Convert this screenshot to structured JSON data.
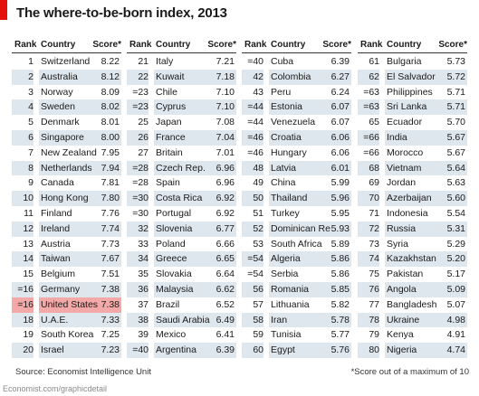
{
  "title": "The where-to-be-born index, 2013",
  "headers": {
    "rank": "Rank",
    "country": "Country",
    "score": "Score*"
  },
  "source": "Source: Economist Intelligence Unit",
  "footnote": "*Score out of a maximum of 10",
  "credit": "Economist.com/graphicdetail",
  "colors": {
    "accent": "#e3120b",
    "row_shade": "#dfe7ee",
    "highlight": "#f4a9a9"
  },
  "chart_data": {
    "type": "table",
    "title": "The where-to-be-born index, 2013",
    "highlighted_country": "United States",
    "columns": [
      {
        "rows": [
          {
            "rank": "1",
            "country": "Switzerland",
            "score": "8.22"
          },
          {
            "rank": "2",
            "country": "Australia",
            "score": "8.12"
          },
          {
            "rank": "3",
            "country": "Norway",
            "score": "8.09"
          },
          {
            "rank": "4",
            "country": "Sweden",
            "score": "8.02"
          },
          {
            "rank": "5",
            "country": "Denmark",
            "score": "8.01"
          },
          {
            "rank": "6",
            "country": "Singapore",
            "score": "8.00"
          },
          {
            "rank": "7",
            "country": "New Zealand",
            "score": "7.95"
          },
          {
            "rank": "8",
            "country": "Netherlands",
            "score": "7.94"
          },
          {
            "rank": "9",
            "country": "Canada",
            "score": "7.81"
          },
          {
            "rank": "10",
            "country": "Hong Kong",
            "score": "7.80"
          },
          {
            "rank": "11",
            "country": "Finland",
            "score": "7.76"
          },
          {
            "rank": "12",
            "country": "Ireland",
            "score": "7.74"
          },
          {
            "rank": "13",
            "country": "Austria",
            "score": "7.73"
          },
          {
            "rank": "14",
            "country": "Taiwan",
            "score": "7.67"
          },
          {
            "rank": "15",
            "country": "Belgium",
            "score": "7.51"
          },
          {
            "rank": "=16",
            "country": "Germany",
            "score": "7.38"
          },
          {
            "rank": "=16",
            "country": "United States",
            "score": "7.38"
          },
          {
            "rank": "18",
            "country": "U.A.E.",
            "score": "7.33"
          },
          {
            "rank": "19",
            "country": "South Korea",
            "score": "7.25"
          },
          {
            "rank": "20",
            "country": "Israel",
            "score": "7.23"
          }
        ]
      },
      {
        "rows": [
          {
            "rank": "21",
            "country": "Italy",
            "score": "7.21"
          },
          {
            "rank": "22",
            "country": "Kuwait",
            "score": "7.18"
          },
          {
            "rank": "=23",
            "country": "Chile",
            "score": "7.10"
          },
          {
            "rank": "=23",
            "country": "Cyprus",
            "score": "7.10"
          },
          {
            "rank": "25",
            "country": "Japan",
            "score": "7.08"
          },
          {
            "rank": "26",
            "country": "France",
            "score": "7.04"
          },
          {
            "rank": "27",
            "country": "Britain",
            "score": "7.01"
          },
          {
            "rank": "=28",
            "country": "Czech Rep.",
            "score": "6.96"
          },
          {
            "rank": "=28",
            "country": "Spain",
            "score": "6.96"
          },
          {
            "rank": "=30",
            "country": "Costa Rica",
            "score": "6.92"
          },
          {
            "rank": "=30",
            "country": "Portugal",
            "score": "6.92"
          },
          {
            "rank": "32",
            "country": "Slovenia",
            "score": "6.77"
          },
          {
            "rank": "33",
            "country": "Poland",
            "score": "6.66"
          },
          {
            "rank": "34",
            "country": "Greece",
            "score": "6.65"
          },
          {
            "rank": "35",
            "country": "Slovakia",
            "score": "6.64"
          },
          {
            "rank": "36",
            "country": "Malaysia",
            "score": "6.62"
          },
          {
            "rank": "37",
            "country": "Brazil",
            "score": "6.52"
          },
          {
            "rank": "38",
            "country": "Saudi Arabia",
            "score": "6.49"
          },
          {
            "rank": "39",
            "country": "Mexico",
            "score": "6.41"
          },
          {
            "rank": "=40",
            "country": "Argentina",
            "score": "6.39"
          }
        ]
      },
      {
        "rows": [
          {
            "rank": "=40",
            "country": "Cuba",
            "score": "6.39"
          },
          {
            "rank": "42",
            "country": "Colombia",
            "score": "6.27"
          },
          {
            "rank": "43",
            "country": "Peru",
            "score": "6.24"
          },
          {
            "rank": "=44",
            "country": "Estonia",
            "score": "6.07"
          },
          {
            "rank": "=44",
            "country": "Venezuela",
            "score": "6.07"
          },
          {
            "rank": "=46",
            "country": "Croatia",
            "score": "6.06"
          },
          {
            "rank": "=46",
            "country": "Hungary",
            "score": "6.06"
          },
          {
            "rank": "48",
            "country": "Latvia",
            "score": "6.01"
          },
          {
            "rank": "49",
            "country": "China",
            "score": "5.99"
          },
          {
            "rank": "50",
            "country": "Thailand",
            "score": "5.96"
          },
          {
            "rank": "51",
            "country": "Turkey",
            "score": "5.95"
          },
          {
            "rank": "52",
            "country": "Dominican Rep.",
            "score": "5.93"
          },
          {
            "rank": "53",
            "country": "South Africa",
            "score": "5.89"
          },
          {
            "rank": "=54",
            "country": "Algeria",
            "score": "5.86"
          },
          {
            "rank": "=54",
            "country": "Serbia",
            "score": "5.86"
          },
          {
            "rank": "56",
            "country": "Romania",
            "score": "5.85"
          },
          {
            "rank": "57",
            "country": "Lithuania",
            "score": "5.82"
          },
          {
            "rank": "58",
            "country": "Iran",
            "score": "5.78"
          },
          {
            "rank": "59",
            "country": "Tunisia",
            "score": "5.77"
          },
          {
            "rank": "60",
            "country": "Egypt",
            "score": "5.76"
          }
        ]
      },
      {
        "rows": [
          {
            "rank": "61",
            "country": "Bulgaria",
            "score": "5.73"
          },
          {
            "rank": "62",
            "country": "El Salvador",
            "score": "5.72"
          },
          {
            "rank": "=63",
            "country": "Philippines",
            "score": "5.71"
          },
          {
            "rank": "=63",
            "country": "Sri Lanka",
            "score": "5.71"
          },
          {
            "rank": "65",
            "country": "Ecuador",
            "score": "5.70"
          },
          {
            "rank": "=66",
            "country": "India",
            "score": "5.67"
          },
          {
            "rank": "=66",
            "country": "Morocco",
            "score": "5.67"
          },
          {
            "rank": "68",
            "country": "Vietnam",
            "score": "5.64"
          },
          {
            "rank": "69",
            "country": "Jordan",
            "score": "5.63"
          },
          {
            "rank": "70",
            "country": "Azerbaijan",
            "score": "5.60"
          },
          {
            "rank": "71",
            "country": "Indonesia",
            "score": "5.54"
          },
          {
            "rank": "72",
            "country": "Russia",
            "score": "5.31"
          },
          {
            "rank": "73",
            "country": "Syria",
            "score": "5.29"
          },
          {
            "rank": "74",
            "country": "Kazakhstan",
            "score": "5.20"
          },
          {
            "rank": "75",
            "country": "Pakistan",
            "score": "5.17"
          },
          {
            "rank": "76",
            "country": "Angola",
            "score": "5.09"
          },
          {
            "rank": "77",
            "country": "Bangladesh",
            "score": "5.07"
          },
          {
            "rank": "78",
            "country": "Ukraine",
            "score": "4.98"
          },
          {
            "rank": "79",
            "country": "Kenya",
            "score": "4.91"
          },
          {
            "rank": "80",
            "country": "Nigeria",
            "score": "4.74"
          }
        ]
      }
    ]
  }
}
